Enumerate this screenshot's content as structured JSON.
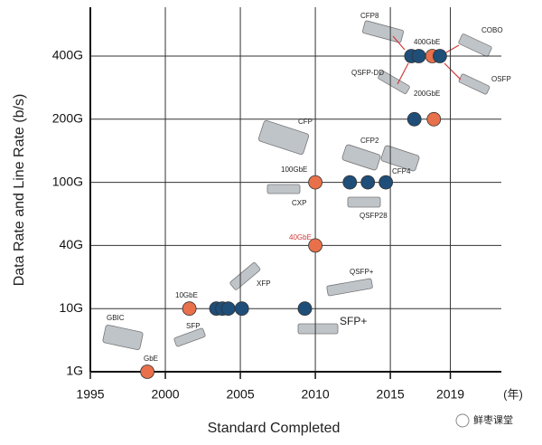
{
  "chart_data": {
    "type": "scatter",
    "y_title": "Data Rate and Line Rate (b/s)",
    "x_title": "Standard Completed",
    "x_unit": "(年)",
    "xlim": [
      1995,
      2022.4
    ],
    "xticks": [
      1995,
      2000,
      2005,
      2010,
      2015,
      2019
    ],
    "ycategories": [
      "1G",
      "10G",
      "40G",
      "100G",
      "200G",
      "400G"
    ],
    "grid": true,
    "series": [
      {
        "color": "#e8704a",
        "x": [
          1998.8,
          2001.6,
          2010,
          2010,
          2017.8,
          2017.9
        ],
        "y": [
          "1G",
          "10G",
          "40G",
          "100G",
          "400G",
          "200G"
        ]
      },
      {
        "color": "#1f4e79",
        "x": [
          2003.4,
          2003.8,
          2004.2,
          2005.1,
          2009.3,
          2012.3,
          2013.5,
          2014.7,
          2016.4,
          2016.9,
          2018.3,
          2016.6
        ],
        "y": [
          "10G",
          "10G",
          "10G",
          "10G",
          "10G",
          "100G",
          "100G",
          "100G",
          "400G",
          "400G",
          "400G",
          "200G"
        ]
      }
    ],
    "annotations": [
      "GBIC",
      "SFP",
      "GbE",
      "10GbE",
      "XFP",
      "SFP+",
      "CFP",
      "100GbE",
      "CXP",
      "40GbE",
      "CFP2",
      "CFP4",
      "QSFP28",
      "QSFP+",
      "CFP8",
      "400GbE",
      "COBO",
      "QSFP-DD",
      "OSFP",
      "200GbE"
    ],
    "watermark": "鲜枣课堂"
  }
}
